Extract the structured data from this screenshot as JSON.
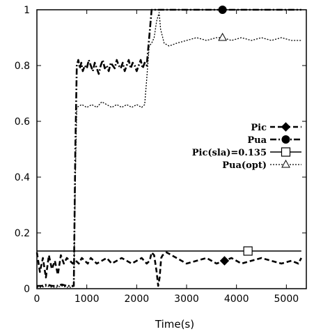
{
  "chart_data": {
    "type": "line",
    "title": "",
    "xlabel": "Time(s)",
    "ylabel": "",
    "xlim": [
      0,
      5400
    ],
    "ylim": [
      0,
      1
    ],
    "xticks": [
      0,
      1000,
      2000,
      3000,
      4000,
      5000
    ],
    "yticks": [
      0,
      0.2,
      0.4,
      0.6,
      0.8,
      1
    ],
    "xtick_labels": [
      "0",
      "1000",
      "2000",
      "3000",
      "4000",
      "5000"
    ],
    "ytick_labels": [
      "0",
      "0.2",
      "0.4",
      "0.6",
      "0.8",
      "1"
    ],
    "grid": false,
    "legend_position": "right-middle",
    "series": [
      {
        "name": "Pic",
        "style": "dashed",
        "marker": "diamond-filled",
        "marker_x": 3760,
        "color": "#000000",
        "x": [
          0,
          60,
          120,
          180,
          240,
          300,
          360,
          420,
          480,
          540,
          600,
          660,
          720,
          780,
          840,
          900,
          960,
          1020,
          1080,
          1140,
          1200,
          1300,
          1400,
          1500,
          1600,
          1700,
          1800,
          1900,
          2000,
          2100,
          2200,
          2260,
          2300,
          2350,
          2400,
          2430,
          2460,
          2490,
          2520,
          2600,
          2700,
          2800,
          2900,
          3000,
          3200,
          3400,
          3600,
          3760,
          3900,
          4100,
          4300,
          4500,
          4700,
          4900,
          5100,
          5240,
          5300
        ],
        "y": [
          0.13,
          0.06,
          0.11,
          0.04,
          0.12,
          0.07,
          0.1,
          0.05,
          0.12,
          0.09,
          0.11,
          0.1,
          0.09,
          0.1,
          0.09,
          0.11,
          0.1,
          0.09,
          0.11,
          0.1,
          0.09,
          0.1,
          0.11,
          0.09,
          0.1,
          0.11,
          0.1,
          0.09,
          0.1,
          0.11,
          0.09,
          0.1,
          0.13,
          0.12,
          0.06,
          0.01,
          0.04,
          0.11,
          0.12,
          0.13,
          0.12,
          0.11,
          0.1,
          0.09,
          0.1,
          0.11,
          0.09,
          0.1,
          0.11,
          0.09,
          0.1,
          0.11,
          0.1,
          0.09,
          0.1,
          0.09,
          0.11
        ]
      },
      {
        "name": "Pua",
        "style": "dash-dot",
        "marker": "circle-filled",
        "marker_x": 3720,
        "color": "#000000",
        "x": [
          0,
          100,
          200,
          300,
          400,
          500,
          600,
          700,
          740,
          770,
          800,
          830,
          860,
          890,
          920,
          960,
          1000,
          1040,
          1080,
          1120,
          1160,
          1200,
          1240,
          1280,
          1320,
          1360,
          1400,
          1440,
          1480,
          1520,
          1560,
          1600,
          1640,
          1680,
          1720,
          1760,
          1800,
          1840,
          1880,
          1920,
          1960,
          2000,
          2040,
          2080,
          2120,
          2160,
          2200,
          2250,
          2300,
          2350,
          2500,
          3000,
          4000,
          5000,
          5300
        ],
        "y": [
          0.01,
          0.01,
          0.015,
          0.01,
          0.01,
          0.015,
          0.01,
          0.01,
          0.01,
          0.5,
          0.8,
          0.82,
          0.79,
          0.81,
          0.78,
          0.8,
          0.79,
          0.82,
          0.8,
          0.78,
          0.81,
          0.79,
          0.77,
          0.8,
          0.82,
          0.79,
          0.8,
          0.78,
          0.81,
          0.8,
          0.79,
          0.82,
          0.8,
          0.79,
          0.81,
          0.78,
          0.8,
          0.82,
          0.79,
          0.81,
          0.8,
          0.78,
          0.8,
          0.82,
          0.79,
          0.81,
          0.8,
          0.9,
          1.0,
          1.0,
          1.0,
          1.0,
          1.0,
          1.0,
          1.0
        ]
      },
      {
        "name": "Pic(sla)=0.135",
        "style": "solid",
        "marker": "square-open",
        "marker_x": 4230,
        "color": "#000000",
        "x": [
          0,
          5300
        ],
        "y": [
          0.135,
          0.135
        ]
      },
      {
        "name": "Pua(opt)",
        "style": "dotted",
        "marker": "triangle-open",
        "marker_x": 3720,
        "color": "#000000",
        "x": [
          0,
          100,
          200,
          300,
          400,
          500,
          600,
          700,
          740,
          770,
          800,
          900,
          1000,
          1100,
          1200,
          1300,
          1400,
          1500,
          1600,
          1700,
          1800,
          1900,
          2000,
          2100,
          2160,
          2200,
          2250,
          2300,
          2350,
          2400,
          2450,
          2480,
          2550,
          2650,
          2800,
          3000,
          3200,
          3400,
          3600,
          3720,
          3900,
          4100,
          4300,
          4500,
          4700,
          4900,
          5100,
          5300
        ],
        "y": [
          0.005,
          0.005,
          0.01,
          0.005,
          0.005,
          0.01,
          0.005,
          0.005,
          0.01,
          0.4,
          0.65,
          0.66,
          0.65,
          0.66,
          0.65,
          0.67,
          0.66,
          0.65,
          0.66,
          0.65,
          0.66,
          0.65,
          0.66,
          0.65,
          0.66,
          0.75,
          0.87,
          0.88,
          0.9,
          0.96,
          0.99,
          0.93,
          0.88,
          0.87,
          0.88,
          0.89,
          0.9,
          0.89,
          0.9,
          0.9,
          0.89,
          0.9,
          0.89,
          0.9,
          0.89,
          0.9,
          0.89,
          0.89
        ]
      }
    ]
  }
}
